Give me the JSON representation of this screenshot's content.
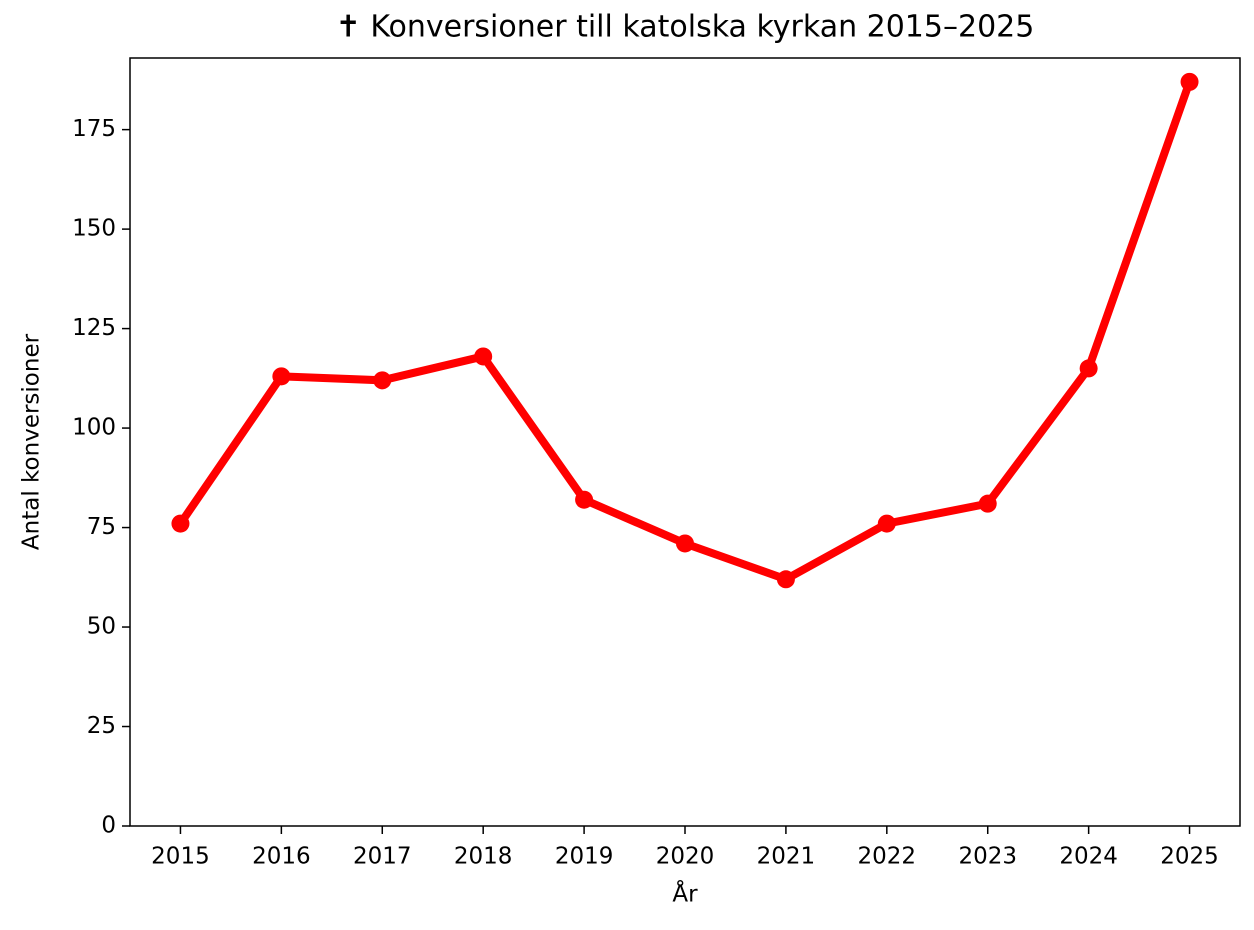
{
  "chart_data": {
    "type": "line",
    "title": "✝ Konversioner till katolska kyrkan 2015–2025",
    "x_label": "År",
    "y_label": "Antal konversioner",
    "x": [
      2015,
      2016,
      2017,
      2018,
      2019,
      2020,
      2021,
      2022,
      2023,
      2024,
      2025
    ],
    "series": [
      {
        "name": "Konversioner",
        "color": "#ff0000",
        "values": [
          76,
          113,
          112,
          118,
          82,
          71,
          62,
          76,
          81,
          115,
          187
        ]
      }
    ],
    "xlim": [
      2014.5,
      2025.5
    ],
    "xticks": [
      2015,
      2016,
      2017,
      2018,
      2019,
      2020,
      2021,
      2022,
      2023,
      2024,
      2025
    ],
    "ylim": [
      0,
      193
    ],
    "yticks": [
      0,
      25,
      50,
      75,
      100,
      125,
      150,
      175
    ],
    "grid": false,
    "legend": false
  }
}
